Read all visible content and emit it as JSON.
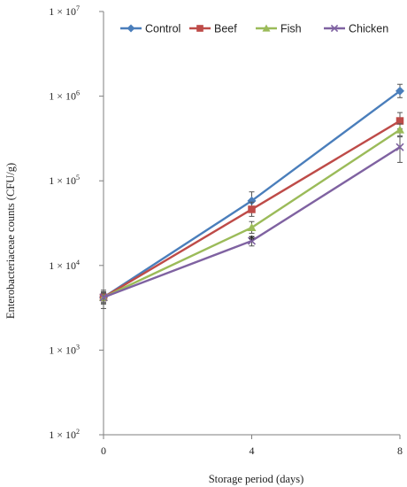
{
  "chart_data": {
    "type": "line",
    "x": [
      0,
      4,
      8
    ],
    "x_tick_labels": [
      "0",
      "4",
      "8"
    ],
    "y_scale": "log",
    "ylim": [
      100,
      10000000
    ],
    "y_ticks": [
      {
        "value": 100,
        "base": "1 × 10",
        "exp": "2"
      },
      {
        "value": 1000,
        "base": "1 × 10",
        "exp": "3"
      },
      {
        "value": 10000,
        "base": "1 × 10",
        "exp": "4"
      },
      {
        "value": 100000,
        "base": "1 × 10",
        "exp": "5"
      },
      {
        "value": 1000000,
        "base": "1 × 10",
        "exp": "6"
      },
      {
        "value": 10000000,
        "base": "1 × 10",
        "exp": "7"
      }
    ],
    "xlabel": "Storage period  (days)",
    "ylabel": "Enterobacteriaceae counts (CFU/g)",
    "legend_position": "top",
    "series": [
      {
        "name": "Control",
        "color": "#4a7ebb",
        "marker": "diamond",
        "values": [
          4200,
          58000,
          1150000
        ],
        "err_low": [
          3100,
          44000,
          960000
        ],
        "err_high": [
          5100,
          74000,
          1380000
        ]
      },
      {
        "name": "Beef",
        "color": "#be4b48",
        "marker": "square",
        "values": [
          4200,
          46000,
          510000
        ],
        "err_low": [
          3500,
          38000,
          410000
        ],
        "err_high": [
          4900,
          56000,
          640000
        ]
      },
      {
        "name": "Fish",
        "color": "#9bbb59",
        "marker": "triangle",
        "values": [
          4200,
          28000,
          400000
        ],
        "err_low": [
          3600,
          24000,
          340000
        ],
        "err_high": [
          4800,
          33000,
          470000
        ]
      },
      {
        "name": "Chicken",
        "color": "#7f62a1",
        "marker": "x",
        "values": [
          4200,
          19500,
          250000
        ],
        "err_low": [
          3700,
          17000,
          165000
        ],
        "err_high": [
          4700,
          22000,
          330000
        ]
      }
    ],
    "annotations": [
      {
        "text": "*",
        "x": 4,
        "y": 22000
      }
    ]
  }
}
